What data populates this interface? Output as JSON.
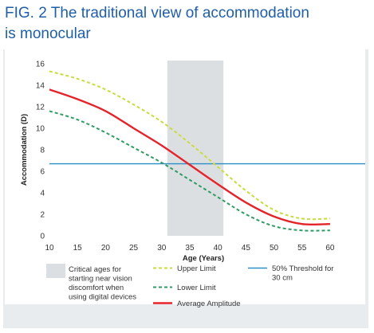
{
  "figure": {
    "title_line1": "FIG. 2 The traditional view of accommodation",
    "title_line2": "is monocular"
  },
  "colors": {
    "title": "#1f5fa8",
    "upper_limit": "#c8dc3c",
    "lower_limit": "#2f9c63",
    "average": "#e5232b",
    "threshold": "#2a8fc8",
    "shade": "#dcdfe2",
    "panel": "#e8ecef"
  },
  "chart_data": {
    "type": "line",
    "xlabel": "Age (Years)",
    "ylabel": "Accommodation (D)",
    "xlim": [
      10,
      62
    ],
    "ylim": [
      0,
      16
    ],
    "x_ticks": [
      10,
      15,
      20,
      25,
      30,
      35,
      40,
      45,
      50,
      55,
      60
    ],
    "y_ticks": [
      0,
      2,
      4,
      6,
      8,
      10,
      12,
      14,
      16
    ],
    "shaded_region": {
      "x0": 31,
      "x1": 41,
      "label_lines": [
        "Critical ages for",
        "starting near vision",
        "discomfort when",
        "using digital devices"
      ]
    },
    "threshold": {
      "name_lines": [
        "50% Threshold for",
        "30 cm"
      ],
      "y": 6.7
    },
    "series": [
      {
        "name": "Upper Limit",
        "style": "dashed",
        "x": [
          10,
          15,
          20,
          25,
          30,
          35,
          40,
          45,
          50,
          55,
          60
        ],
        "y": [
          15.3,
          14.6,
          13.6,
          12.2,
          10.6,
          8.6,
          6.4,
          4.2,
          2.4,
          1.6,
          1.6
        ]
      },
      {
        "name": "Lower Limit",
        "style": "dashed",
        "x": [
          10,
          15,
          20,
          25,
          30,
          35,
          40,
          45,
          50,
          55,
          60
        ],
        "y": [
          11.6,
          10.8,
          9.6,
          8.2,
          6.8,
          5.2,
          3.6,
          2.0,
          0.9,
          0.5,
          0.5
        ]
      },
      {
        "name": "Average Amplitude",
        "style": "solid",
        "x": [
          10,
          15,
          20,
          25,
          30,
          35,
          40,
          45,
          50,
          55,
          60
        ],
        "y": [
          13.6,
          12.7,
          11.6,
          10.0,
          8.4,
          6.6,
          4.8,
          3.1,
          1.8,
          1.1,
          1.1
        ]
      }
    ]
  }
}
